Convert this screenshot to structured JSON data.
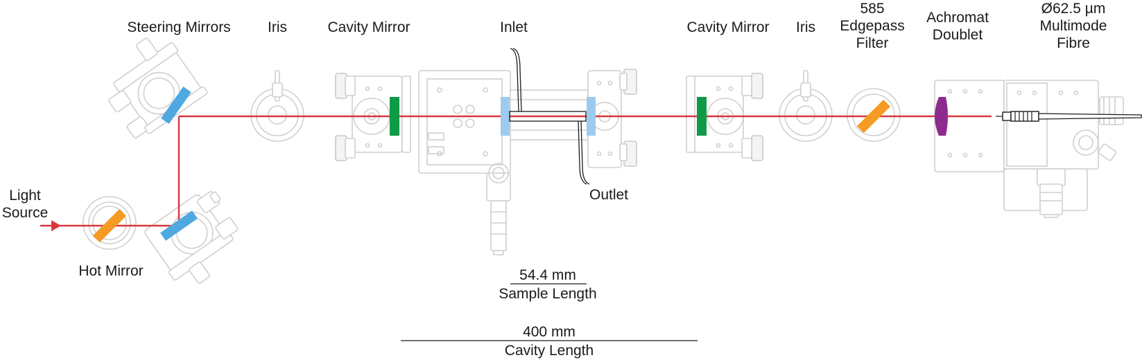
{
  "labels": {
    "light_source": "Light\nSource",
    "hot_mirror": "Hot Mirror",
    "steering_mirrors": "Steering Mirrors",
    "iris_left": "Iris",
    "cavity_mirror_left": "Cavity Mirror",
    "inlet": "Inlet",
    "outlet": "Outlet",
    "cavity_mirror_right": "Cavity Mirror",
    "iris_right": "Iris",
    "edgepass_filter": "585\nEdgepass\nFilter",
    "achromat_doublet": "Achromat\nDoublet",
    "multimode_fibre": "Ø62.5 µm\nMultimode\nFibre"
  },
  "dimensions": {
    "sample_length_value": "54.4 mm",
    "sample_length_label": "Sample Length",
    "cavity_length_value": "400 mm",
    "cavity_length_label": "Cavity Length"
  },
  "colors": {
    "beam": "#d9363e",
    "steering_mirror": "#4fa8e0",
    "hot_mirror": "#f59a23",
    "edgepass_filter": "#f59a23",
    "cavity_mirror": "#0e9a47",
    "cuvette_window": "#9ccbef",
    "achromat_lens": "#8e2b8e",
    "hardware": "#cfcfcf"
  }
}
